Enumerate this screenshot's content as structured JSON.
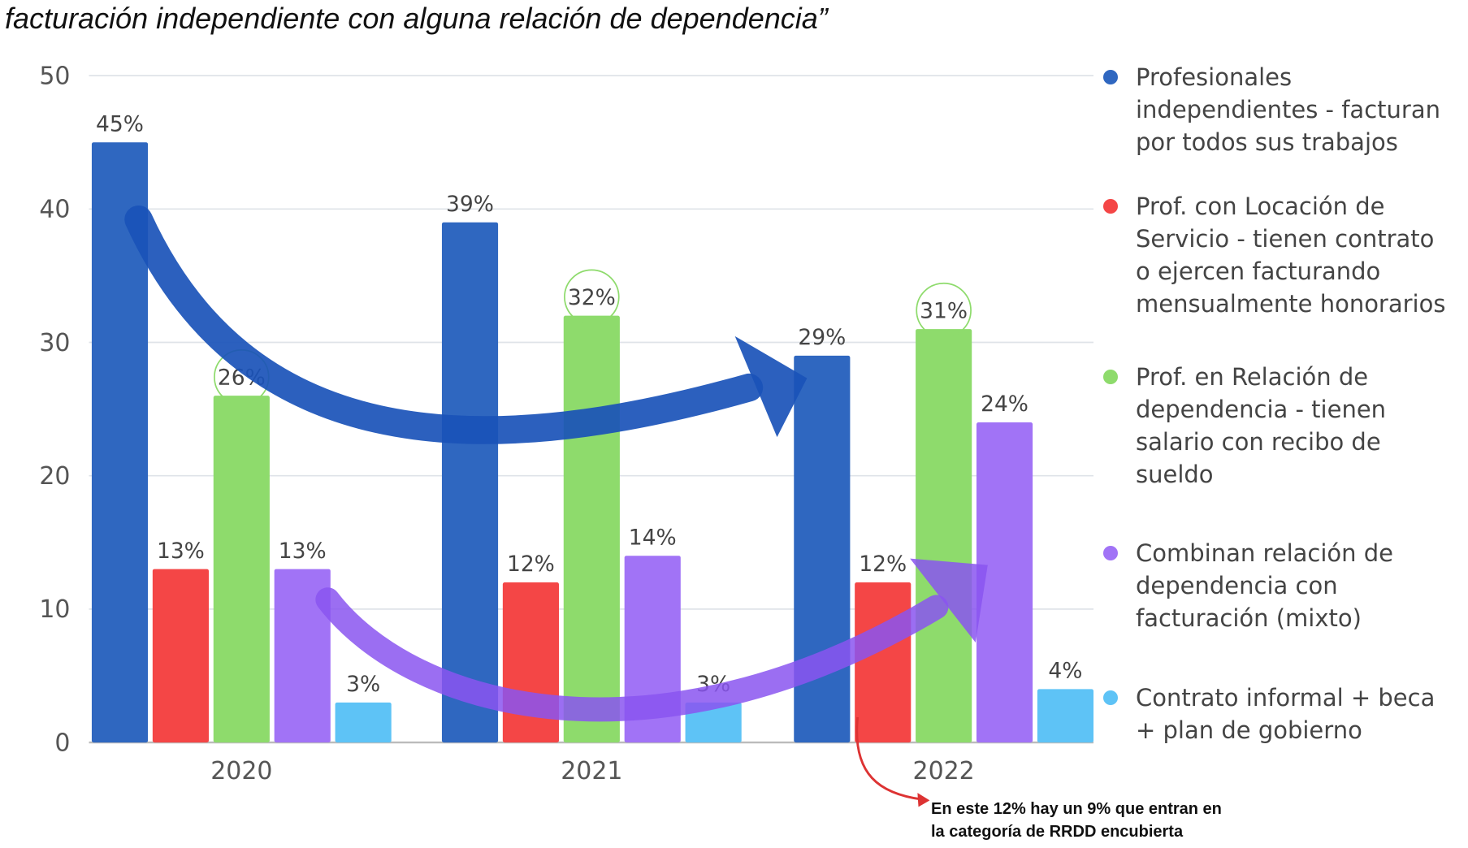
{
  "chart_data": {
    "type": "bar",
    "title": "facturación independiente con alguna relación de dependencia”",
    "categories": [
      "2020",
      "2021",
      "2022"
    ],
    "series": [
      {
        "name": "Profesionales independientes - facturan por todos sus trabajos",
        "color": "#2f67c0",
        "values": [
          45,
          39,
          29
        ],
        "value_labels": [
          "45%",
          "39%",
          "29%"
        ]
      },
      {
        "name": "Prof. con Locación de Servicio - tienen contrato o ejercen facturando mensualmente honorarios",
        "color": "#f44646",
        "values": [
          13,
          12,
          12
        ],
        "value_labels": [
          "13%",
          "12%",
          "12%"
        ]
      },
      {
        "name": "Prof. en Relación de dependencia - tienen salario con recibo de sueldo",
        "color": "#8edb6c",
        "values": [
          26,
          32,
          31
        ],
        "value_labels": [
          "26%",
          "32%",
          "31%"
        ]
      },
      {
        "name": "Combinan relación de dependencia con facturación (mixto)",
        "color": "#a173f6",
        "values": [
          13,
          14,
          24
        ],
        "value_labels": [
          "13%",
          "14%",
          "24%"
        ]
      },
      {
        "name": "Contrato informal + beca + plan de gobierno",
        "color": "#5ec3f6",
        "values": [
          3,
          3,
          4
        ],
        "value_labels": [
          "3%",
          "3%",
          "4%"
        ]
      }
    ],
    "annotation": "En este 12% hay un 9% que entran en la categoría de RRDD encubierta",
    "ylim": [
      0,
      50
    ],
    "yticks": [
      0,
      10,
      20,
      30,
      40,
      50
    ],
    "grid": true
  }
}
